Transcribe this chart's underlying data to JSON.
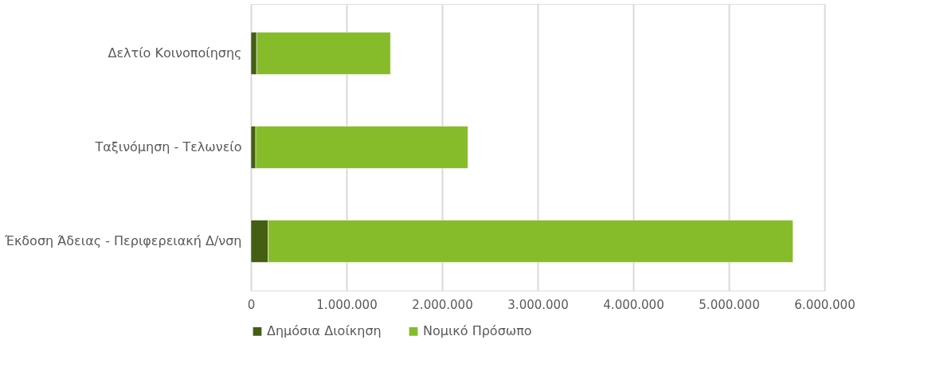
{
  "chart_data": {
    "type": "bar",
    "orientation": "horizontal",
    "stacked": true,
    "categories": [
      "Δελτίο Κοινοποίησης",
      "Ταξινόμηση - Τελωνείο",
      "Έκδοση Άδειας - Περιφερειακή Δ/νση"
    ],
    "series": [
      {
        "name": "Δημόσια Διοίκηση",
        "color": "#445e13",
        "values": [
          60000,
          50000,
          180000
        ]
      },
      {
        "name": "Νομικό Πρόσωπο",
        "color": "#86bc29",
        "values": [
          1400000,
          2220000,
          5490000
        ]
      }
    ],
    "xlim": [
      0,
      6000000
    ],
    "xticks": [
      0,
      {
        "value": 1000000,
        "label": "1.000.000"
      },
      {
        "value": 2000000,
        "label": "2.000.000"
      },
      {
        "value": 3000000,
        "label": "3.000.000"
      },
      {
        "value": 4000000,
        "label": "4.000.000"
      },
      {
        "value": 5000000,
        "label": "5.000.000"
      },
      {
        "value": 6000000,
        "label": "6.000.000"
      }
    ],
    "grid": "x",
    "legend": "bottom"
  }
}
